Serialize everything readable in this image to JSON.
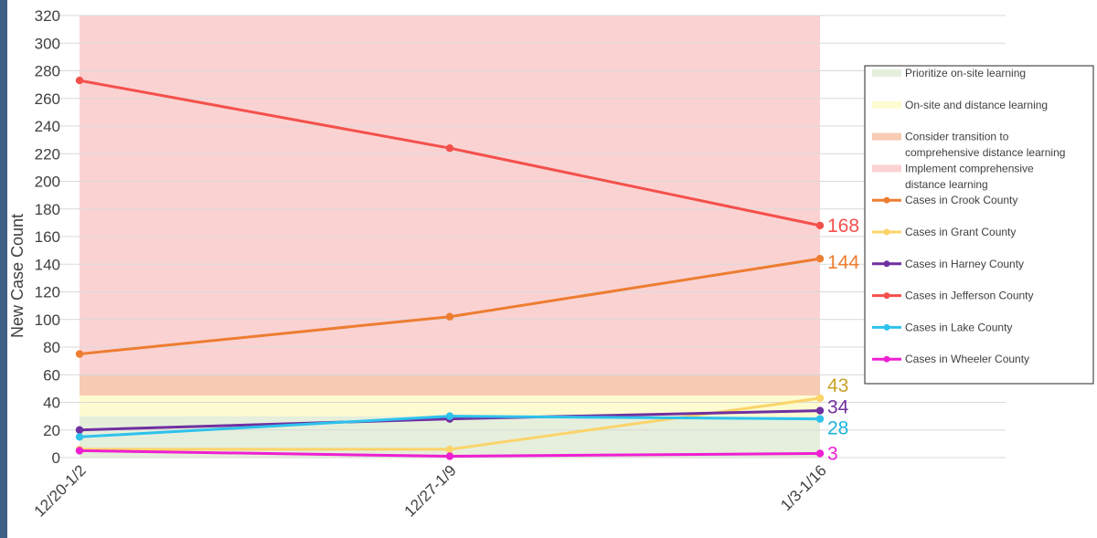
{
  "chart_data": {
    "type": "line",
    "xlabel": "",
    "ylabel": "New Case Count",
    "categories": [
      "12/20-1/2",
      "12/27-1/9",
      "1/3-1/16"
    ],
    "ylim": [
      0,
      320
    ],
    "yticks": [
      0,
      20,
      40,
      60,
      80,
      100,
      120,
      140,
      160,
      180,
      200,
      220,
      240,
      260,
      280,
      300,
      320
    ],
    "grid": true,
    "legend_position": "right",
    "bands": [
      {
        "name": "Prioritize on-site learning",
        "from": 0,
        "to": 30,
        "color": "#e6efdc"
      },
      {
        "name": "On-site and distance learning",
        "from": 30,
        "to": 45,
        "color": "#fdfbd0"
      },
      {
        "name": "Consider transition to comprehensive distance learning",
        "from": 45,
        "to": 60,
        "color": "#f7cbb4"
      },
      {
        "name": "Implement comprehensive distance learning",
        "from": 60,
        "to": 320,
        "color": "#fbd2d2"
      }
    ],
    "series": [
      {
        "name": "Cases in Crook County",
        "values": [
          75,
          102,
          144
        ],
        "color": "#ed7d31",
        "end_label": "144",
        "label_color": "#ed7d31"
      },
      {
        "name": "Cases in Grant County",
        "values": [
          6,
          6,
          43
        ],
        "color": "#fbd46a",
        "end_label": "43",
        "label_color": "#c9a227"
      },
      {
        "name": "Cases in Harney County",
        "values": [
          20,
          28,
          34
        ],
        "color": "#7030a0",
        "end_label": "34",
        "label_color": "#7030a0"
      },
      {
        "name": "Cases in Jefferson County",
        "values": [
          273,
          224,
          168
        ],
        "color": "#f4504b",
        "end_label": "168",
        "label_color": "#f4504b"
      },
      {
        "name": "Cases in Lake County",
        "values": [
          15,
          30,
          28
        ],
        "color": "#2ec2ec",
        "end_label": "28",
        "label_color": "#1fb4dd"
      },
      {
        "name": "Cases in Wheeler County",
        "values": [
          5,
          1,
          3
        ],
        "color": "#ee1fd2",
        "end_label": "3",
        "label_color": "#ee1fd2"
      }
    ]
  },
  "legend": {
    "items": [
      {
        "kind": "band",
        "label_lines": [
          "Prioritize on-site learning"
        ],
        "color": "#e6efdc"
      },
      {
        "kind": "band",
        "label_lines": [
          "On-site and distance learning"
        ],
        "color": "#fdfbd0"
      },
      {
        "kind": "band",
        "label_lines": [
          "Consider transition to",
          "comprehensive distance learning"
        ],
        "color": "#f7cbb4"
      },
      {
        "kind": "band",
        "label_lines": [
          "Implement comprehensive",
          "distance learning"
        ],
        "color": "#fbd2d2"
      },
      {
        "kind": "line",
        "label_lines": [
          "Cases in Crook County"
        ],
        "color": "#ed7d31"
      },
      {
        "kind": "line",
        "label_lines": [
          "Cases in Grant County"
        ],
        "color": "#fbd46a"
      },
      {
        "kind": "line",
        "label_lines": [
          "Cases in Harney County"
        ],
        "color": "#7030a0"
      },
      {
        "kind": "line",
        "label_lines": [
          "Cases in Jefferson County"
        ],
        "color": "#f4504b"
      },
      {
        "kind": "line",
        "label_lines": [
          "Cases in Lake County"
        ],
        "color": "#2ec2ec"
      },
      {
        "kind": "line",
        "label_lines": [
          "Cases in Wheeler County"
        ],
        "color": "#ee1fd2"
      }
    ]
  }
}
